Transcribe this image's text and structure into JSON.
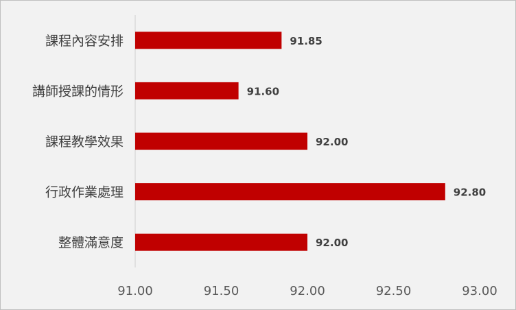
{
  "chart_data": {
    "type": "bar",
    "orientation": "horizontal",
    "categories": [
      "課程內容安排",
      "講師授課的情形",
      "課程教學效果",
      "行政作業處理",
      "整體滿意度"
    ],
    "values": [
      91.85,
      91.6,
      92.0,
      92.8,
      92.0
    ],
    "value_labels": [
      "91.85",
      "91.60",
      "92.00",
      "92.80",
      "92.00"
    ],
    "xlim": [
      91.0,
      93.0
    ],
    "x_ticks": [
      "91.00",
      "91.50",
      "92.00",
      "92.50",
      "93.00"
    ],
    "grid": false,
    "legend": "none",
    "colors": {
      "bar": "#c00000",
      "background": "#f2f2f2"
    }
  }
}
